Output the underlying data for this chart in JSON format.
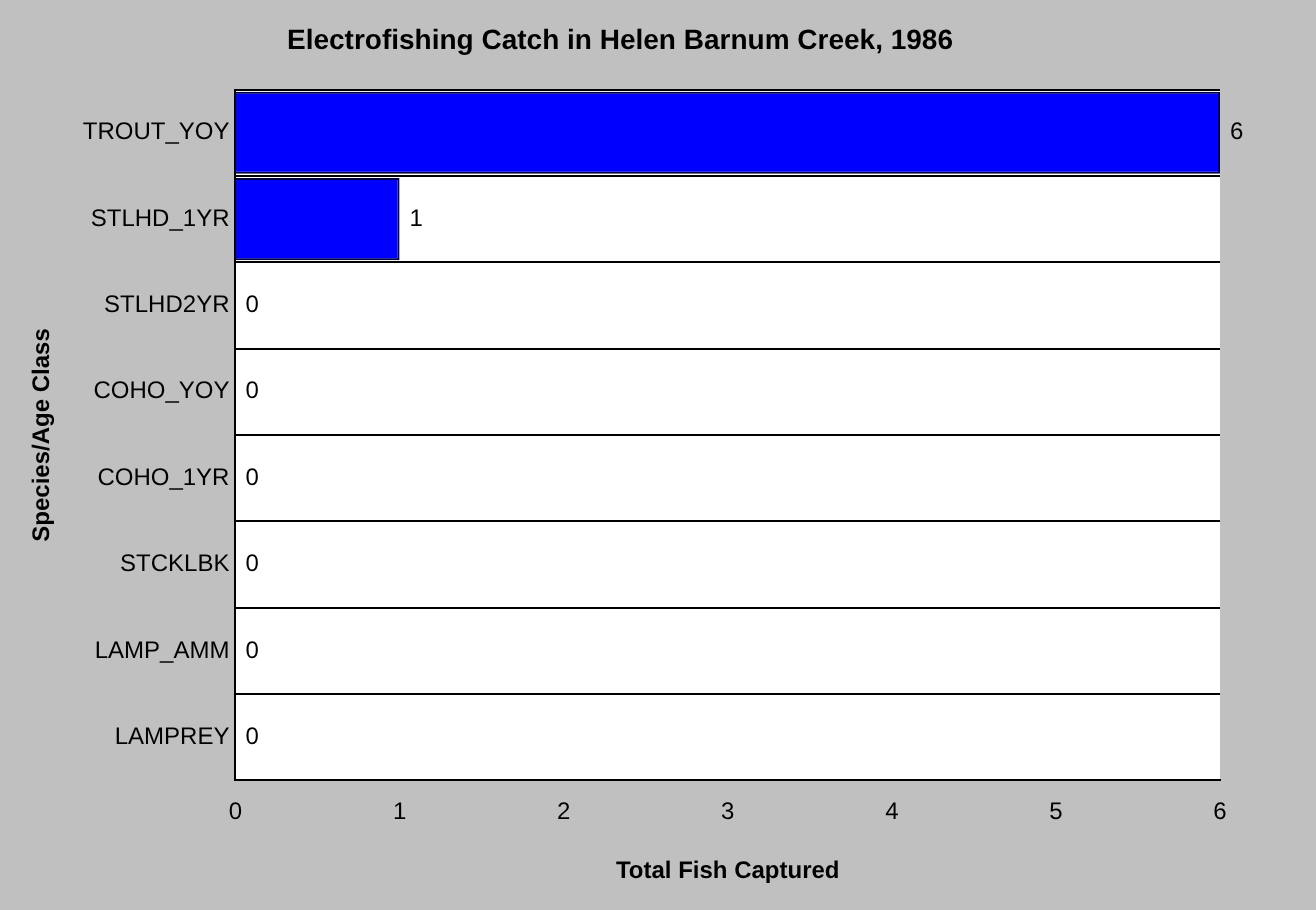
{
  "chart_data": {
    "type": "bar",
    "orientation": "horizontal",
    "title": "Electrofishing Catch in Helen Barnum Creek, 1986",
    "xlabel": "Total Fish Captured",
    "ylabel": "Species/Age Class",
    "categories": [
      "TROUT_YOY",
      "STLHD_1YR",
      "STLHD2YR",
      "COHO_YOY",
      "COHO_1YR",
      "STCKLBK",
      "LAMP_AMM",
      "LAMPREY"
    ],
    "values": [
      6,
      1,
      0,
      0,
      0,
      0,
      0,
      0
    ],
    "color": "#0000ff",
    "xlim": [
      0,
      6
    ],
    "xticks": [
      0,
      1,
      2,
      3,
      4,
      5,
      6
    ],
    "grid": "y",
    "data_labels": true
  }
}
